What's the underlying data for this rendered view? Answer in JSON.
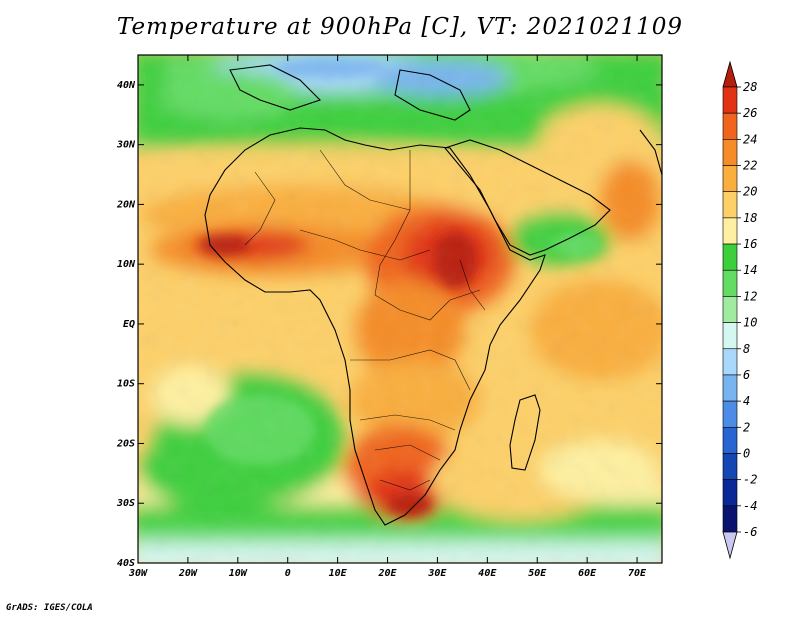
{
  "title": "Temperature at 900hPa [C], VT: 2021021109",
  "credit": "GrADS: IGES/COLA",
  "chart_data": {
    "type": "heatmap",
    "title": "Temperature at 900hPa [C], VT: 2021021109",
    "variable": "Temperature at 900hPa",
    "units": "C",
    "valid_time": "2021021109",
    "lon_range": [
      -30,
      75
    ],
    "lat_range": [
      -40,
      45
    ],
    "x_ticks": [
      {
        "value": -30,
        "label": "30W"
      },
      {
        "value": -20,
        "label": "20W"
      },
      {
        "value": -10,
        "label": "10W"
      },
      {
        "value": 0,
        "label": "0"
      },
      {
        "value": 10,
        "label": "10E"
      },
      {
        "value": 20,
        "label": "20E"
      },
      {
        "value": 30,
        "label": "30E"
      },
      {
        "value": 40,
        "label": "40E"
      },
      {
        "value": 50,
        "label": "50E"
      },
      {
        "value": 60,
        "label": "60E"
      },
      {
        "value": 70,
        "label": "70E"
      }
    ],
    "y_ticks": [
      {
        "value": 40,
        "label": "40N"
      },
      {
        "value": 30,
        "label": "30N"
      },
      {
        "value": 20,
        "label": "20N"
      },
      {
        "value": 10,
        "label": "10N"
      },
      {
        "value": 0,
        "label": "EQ"
      },
      {
        "value": -10,
        "label": "10S"
      },
      {
        "value": -20,
        "label": "20S"
      },
      {
        "value": -30,
        "label": "30S"
      },
      {
        "value": -40,
        "label": "40S"
      }
    ],
    "colorbar": {
      "labels": [
        "28",
        "26",
        "24",
        "22",
        "20",
        "18",
        "16",
        "14",
        "12",
        "10",
        "8",
        "6",
        "4",
        "2",
        "0",
        "-2",
        "-4",
        "-6"
      ],
      "colors": [
        "#b41e0a",
        "#e13214",
        "#f0641e",
        "#f58c28",
        "#faae3c",
        "#fdd068",
        "#fef0a0",
        "#3ccf3c",
        "#64dc64",
        "#a0eba0",
        "#d4f7f0",
        "#a8d8fa",
        "#78b4f0",
        "#4c8ce6",
        "#2864d2",
        "#1446b4",
        "#0a2896",
        "#0a1470",
        "#c8c8f0"
      ]
    }
  }
}
